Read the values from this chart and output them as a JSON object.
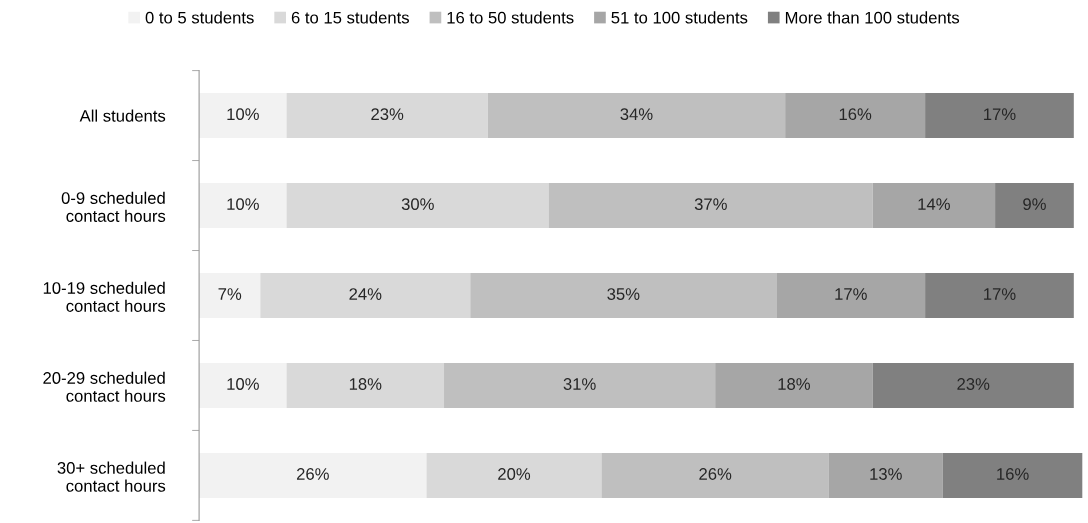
{
  "chart_data": {
    "type": "bar",
    "orientation": "horizontal",
    "stacked": true,
    "legend": "top",
    "grid": false,
    "categories": [
      "All students",
      "0-9 scheduled\ncontact hours",
      "10-19 scheduled\ncontact hours",
      "20-29 scheduled\ncontact hours",
      "30+ scheduled\ncontact hours"
    ],
    "series": [
      {
        "name": "0 to 5 students",
        "color": "#f2f2f2",
        "values": [
          10,
          10,
          7,
          10,
          26
        ],
        "value_labels": [
          "10%",
          "10%",
          "7%",
          "10%",
          "26%"
        ]
      },
      {
        "name": "6 to 15 students",
        "color": "#d9d9d9",
        "values": [
          23,
          30,
          24,
          18,
          20
        ],
        "value_labels": [
          "23%",
          "30%",
          "24%",
          "18%",
          "20%"
        ]
      },
      {
        "name": "16 to 50 students",
        "color": "#bfbfbf",
        "values": [
          34,
          37,
          35,
          31,
          26
        ],
        "value_labels": [
          "34%",
          "37%",
          "35%",
          "31%",
          "26%"
        ]
      },
      {
        "name": "51 to 100 students",
        "color": "#a6a6a6",
        "values": [
          16,
          14,
          17,
          18,
          13
        ],
        "value_labels": [
          "16%",
          "14%",
          "17%",
          "18%",
          "13%"
        ]
      },
      {
        "name": "More than 100 students",
        "color": "#808080",
        "values": [
          17,
          9,
          17,
          23,
          16
        ],
        "value_labels": [
          "17%",
          "9%",
          "17%",
          "23%",
          "16%"
        ]
      }
    ]
  }
}
